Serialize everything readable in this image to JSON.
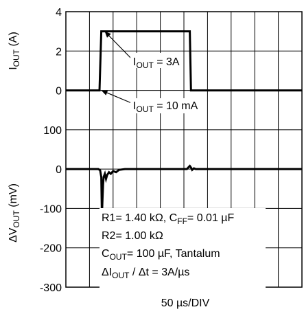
{
  "chart_data": [
    {
      "type": "line",
      "panel": "top",
      "ylabel": {
        "main": "I",
        "sub": "OUT",
        "unit": " (A)"
      },
      "yticks": [
        "4",
        "2",
        "0"
      ],
      "ylim": [
        0,
        4
      ],
      "grid": true,
      "series": [
        {
          "x": [
            0,
            57,
            60,
            62,
            210,
            212,
            400
          ],
          "y": [
            0,
            0,
            3,
            3,
            3,
            0,
            0
          ]
        }
      ]
    },
    {
      "type": "line",
      "panel": "bottom",
      "ylabel": {
        "main": "ΔV",
        "sub": "OUT",
        "unit": " (mV)"
      },
      "yticks": [
        "100",
        "0",
        "-100",
        "-200",
        "-300"
      ],
      "ylim": [
        -300,
        100
      ],
      "grid": true,
      "series": [
        {
          "x": [
            0,
            40,
            55,
            58,
            60,
            61,
            62,
            63,
            64,
            66,
            68,
            70,
            73,
            76,
            80,
            85,
            90,
            100,
            150,
            205,
            208,
            210,
            212,
            214,
            217,
            220,
            230,
            300,
            400
          ],
          "y": [
            0,
            0,
            0,
            -3,
            -20,
            -120,
            -80,
            -40,
            -20,
            -12,
            -25,
            -15,
            -8,
            -12,
            -5,
            -8,
            -2,
            0,
            0,
            0,
            5,
            8,
            4,
            -2,
            2,
            0,
            0,
            0,
            0
          ]
        }
      ]
    }
  ],
  "xlabel": "50 µs/DIV",
  "annotations": {
    "iout_high": {
      "pre": "I",
      "sub": "OUT",
      "post": " = 3A"
    },
    "iout_low": {
      "pre": "I",
      "sub": "OUT",
      "post": " = 10 mA"
    },
    "r1": {
      "pre": "R1= 1.40 kΩ, C",
      "sub": "FF",
      "post": "= 0.01 µF"
    },
    "r2": {
      "pre": "R2= 1.00 kΩ"
    },
    "cout": {
      "pre": "C",
      "sub": "OUT",
      "post": "= 100 µF, Tantalum"
    },
    "slew": {
      "pre": "ΔI",
      "sub": "OUT",
      "post": " / Δt = 3A/µs"
    }
  }
}
